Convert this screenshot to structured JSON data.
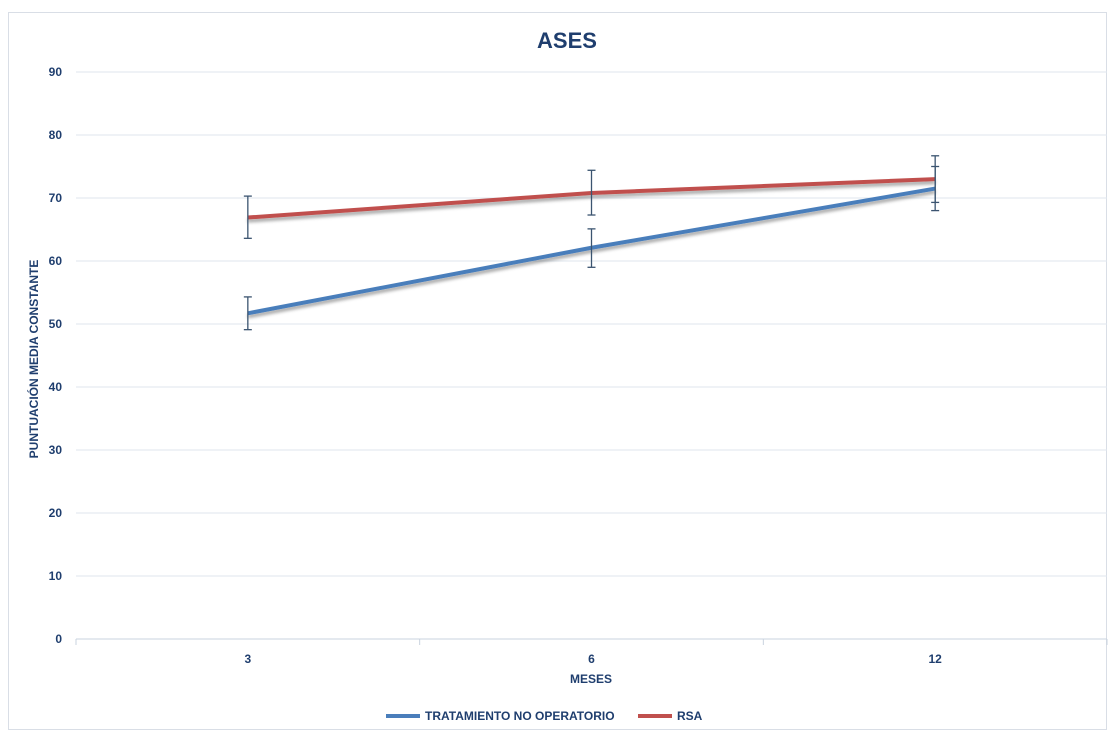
{
  "chart_data": {
    "type": "line",
    "title": "ASES",
    "xlabel": "MESES",
    "ylabel": "PUNTUACIÓN MEDIA CONSTANTE",
    "categories": [
      "3",
      "6",
      "12"
    ],
    "ylim": [
      0,
      90
    ],
    "yticks": [
      0,
      10,
      20,
      30,
      40,
      50,
      60,
      70,
      80,
      90
    ],
    "grid": true,
    "legend_position": "bottom",
    "series": [
      {
        "name": "TRATAMIENTO NO OPERATORIO",
        "color": "#4a7ebb",
        "values": [
          51.7,
          62.1,
          71.5
        ],
        "error_low": [
          49.1,
          59.0,
          68.0
        ],
        "error_high": [
          54.3,
          65.1,
          75.0
        ]
      },
      {
        "name": "RSA",
        "color": "#c0504d",
        "values": [
          66.9,
          70.8,
          73.0
        ],
        "error_low": [
          63.6,
          67.3,
          69.3
        ],
        "error_high": [
          70.3,
          74.4,
          76.7
        ]
      }
    ]
  }
}
